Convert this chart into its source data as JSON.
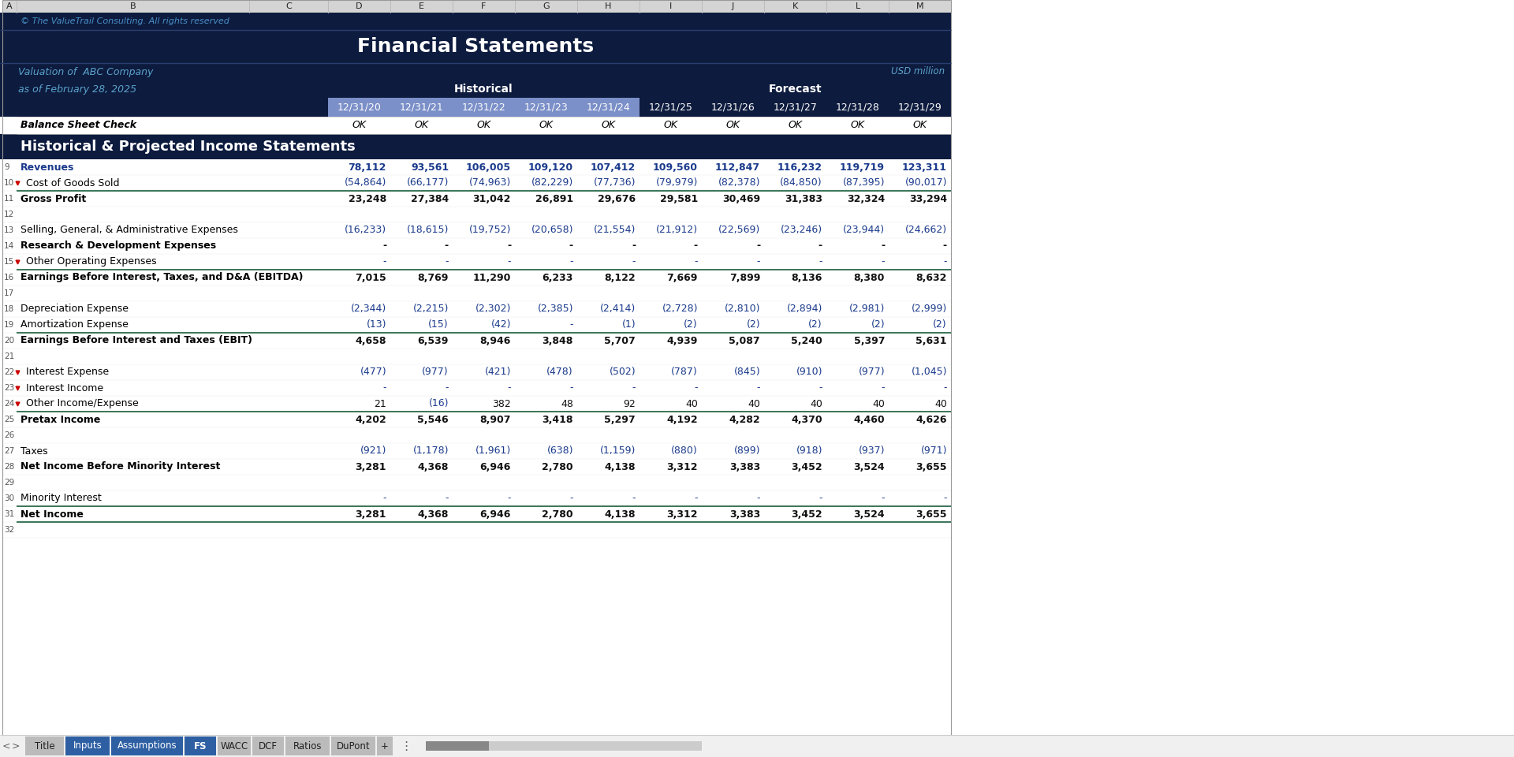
{
  "title": "Financial Statements",
  "copyright": "© The ValueTrail Consulting. All rights reserved",
  "company": "Valuation of  ABC Company",
  "date": "as of February 28, 2025",
  "usd_note": "USD million",
  "section_header": "Historical & Projected Income Statements",
  "historical_label": "Historical",
  "forecast_label": "Forecast",
  "col_headers": [
    "12/31/20",
    "12/31/21",
    "12/31/22",
    "12/31/23",
    "12/31/24",
    "12/31/25",
    "12/31/26",
    "12/31/27",
    "12/31/28",
    "12/31/29"
  ],
  "balance_check": [
    "OK",
    "OK",
    "OK",
    "OK",
    "OK",
    "OK",
    "OK",
    "OK",
    "OK",
    "OK"
  ],
  "rows": [
    {
      "label": "Revenues",
      "bold": true,
      "blue_bold": true,
      "indent": 0,
      "row_num": 9,
      "values": [
        "78,112",
        "93,561",
        "106,005",
        "109,120",
        "107,412",
        "109,560",
        "112,847",
        "116,232",
        "119,719",
        "123,311"
      ]
    },
    {
      "label": "Cost of Goods Sold",
      "bold": false,
      "blue_bold": false,
      "indent": 0,
      "red_marker": true,
      "row_num": 10,
      "values": [
        "(54,864)",
        "(66,177)",
        "(74,963)",
        "(82,229)",
        "(77,736)",
        "(79,979)",
        "(82,378)",
        "(84,850)",
        "(87,395)",
        "(90,017)"
      ]
    },
    {
      "label": "Gross Profit",
      "bold": true,
      "blue_bold": false,
      "indent": 0,
      "top_border": true,
      "row_num": 11,
      "values": [
        "23,248",
        "27,384",
        "31,042",
        "26,891",
        "29,676",
        "29,581",
        "30,469",
        "31,383",
        "32,324",
        "33,294"
      ]
    },
    {
      "label": "",
      "bold": false,
      "indent": 0,
      "row_num": 12,
      "values": [
        "",
        "",
        "",
        "",
        "",
        "",
        "",
        "",
        "",
        ""
      ]
    },
    {
      "label": "Selling, General, & Administrative Expenses",
      "bold": false,
      "indent": 0,
      "row_num": 13,
      "values": [
        "(16,233)",
        "(18,615)",
        "(19,752)",
        "(20,658)",
        "(21,554)",
        "(21,912)",
        "(22,569)",
        "(23,246)",
        "(23,944)",
        "(24,662)"
      ]
    },
    {
      "label": "Research & Development Expenses",
      "bold": true,
      "indent": 0,
      "row_num": 14,
      "values": [
        "-",
        "-",
        "-",
        "-",
        "-",
        "-",
        "-",
        "-",
        "-",
        "-"
      ]
    },
    {
      "label": "Other Operating Expenses",
      "bold": false,
      "indent": 0,
      "red_marker": true,
      "row_num": 15,
      "values": [
        "-",
        "-",
        "-",
        "-",
        "-",
        "-",
        "-",
        "-",
        "-",
        "-"
      ]
    },
    {
      "label": "Earnings Before Interest, Taxes, and D&A (EBITDA)",
      "bold": true,
      "indent": 0,
      "top_border": true,
      "row_num": 16,
      "values": [
        "7,015",
        "8,769",
        "11,290",
        "6,233",
        "8,122",
        "7,669",
        "7,899",
        "8,136",
        "8,380",
        "8,632"
      ]
    },
    {
      "label": "",
      "bold": false,
      "indent": 0,
      "row_num": 17,
      "values": [
        "",
        "",
        "",
        "",
        "",
        "",
        "",
        "",
        "",
        ""
      ]
    },
    {
      "label": "Depreciation Expense",
      "bold": false,
      "indent": 0,
      "row_num": 18,
      "values": [
        "(2,344)",
        "(2,215)",
        "(2,302)",
        "(2,385)",
        "(2,414)",
        "(2,728)",
        "(2,810)",
        "(2,894)",
        "(2,981)",
        "(2,999)"
      ]
    },
    {
      "label": "Amortization Expense",
      "bold": false,
      "indent": 0,
      "row_num": 19,
      "values": [
        "(13)",
        "(15)",
        "(42)",
        "-",
        "(1)",
        "(2)",
        "(2)",
        "(2)",
        "(2)",
        "(2)"
      ]
    },
    {
      "label": "Earnings Before Interest and Taxes (EBIT)",
      "bold": true,
      "indent": 0,
      "top_border": true,
      "row_num": 20,
      "values": [
        "4,658",
        "6,539",
        "8,946",
        "3,848",
        "5,707",
        "4,939",
        "5,087",
        "5,240",
        "5,397",
        "5,631"
      ]
    },
    {
      "label": "",
      "bold": false,
      "indent": 0,
      "row_num": 21,
      "values": [
        "",
        "",
        "",
        "",
        "",
        "",
        "",
        "",
        "",
        ""
      ]
    },
    {
      "label": "Interest Expense",
      "bold": false,
      "indent": 0,
      "red_marker": true,
      "row_num": 22,
      "values": [
        "(477)",
        "(977)",
        "(421)",
        "(478)",
        "(502)",
        "(787)",
        "(845)",
        "(910)",
        "(977)",
        "(1,045)"
      ]
    },
    {
      "label": "Interest Income",
      "bold": false,
      "indent": 0,
      "red_marker": true,
      "row_num": 23,
      "values": [
        "-",
        "-",
        "-",
        "-",
        "-",
        "-",
        "-",
        "-",
        "-",
        "-"
      ]
    },
    {
      "label": "Other Income/Expense",
      "bold": false,
      "indent": 0,
      "red_marker": true,
      "row_num": 24,
      "values": [
        "21",
        "(16)",
        "382",
        "48",
        "92",
        "40",
        "40",
        "40",
        "40",
        "40"
      ]
    },
    {
      "label": "Pretax Income",
      "bold": true,
      "indent": 0,
      "top_border": true,
      "row_num": 25,
      "values": [
        "4,202",
        "5,546",
        "8,907",
        "3,418",
        "5,297",
        "4,192",
        "4,282",
        "4,370",
        "4,460",
        "4,626"
      ]
    },
    {
      "label": "",
      "bold": false,
      "indent": 0,
      "row_num": 26,
      "values": [
        "",
        "",
        "",
        "",
        "",
        "",
        "",
        "",
        "",
        ""
      ]
    },
    {
      "label": "Taxes",
      "bold": false,
      "indent": 0,
      "row_num": 27,
      "values": [
        "(921)",
        "(1,178)",
        "(1,961)",
        "(638)",
        "(1,159)",
        "(880)",
        "(899)",
        "(918)",
        "(937)",
        "(971)"
      ]
    },
    {
      "label": "Net Income Before Minority Interest",
      "bold": true,
      "indent": 0,
      "row_num": 28,
      "values": [
        "3,281",
        "4,368",
        "6,946",
        "2,780",
        "4,138",
        "3,312",
        "3,383",
        "3,452",
        "3,524",
        "3,655"
      ]
    },
    {
      "label": "",
      "bold": false,
      "indent": 0,
      "row_num": 29,
      "values": [
        "",
        "",
        "",
        "",
        "",
        "",
        "",
        "",
        "",
        ""
      ]
    },
    {
      "label": "Minority Interest",
      "bold": false,
      "indent": 0,
      "row_num": 30,
      "values": [
        "-",
        "-",
        "-",
        "-",
        "-",
        "-",
        "-",
        "-",
        "-",
        "-"
      ]
    },
    {
      "label": "Net Income",
      "bold": true,
      "indent": 0,
      "top_border": true,
      "bottom_border": true,
      "row_num": 31,
      "values": [
        "3,281",
        "4,368",
        "6,946",
        "2,780",
        "4,138",
        "3,312",
        "3,383",
        "3,452",
        "3,524",
        "3,655"
      ]
    },
    {
      "label": "",
      "bold": false,
      "indent": 0,
      "row_num": 32,
      "values": [
        "",
        "",
        "",
        "",
        "",
        "",
        "",
        "",
        "",
        ""
      ]
    }
  ],
  "tabs": [
    "Title",
    "Inputs",
    "Assumptions",
    "FS",
    "WACC",
    "DCF",
    "Ratios",
    "DuPont",
    "+"
  ],
  "active_tab": "FS",
  "colors": {
    "dark_navy": "#0D1B3E",
    "blue_text": "#1A3A8C",
    "paren_blue": "#1A3A8C",
    "white_text": "#FFFFFF",
    "copyright_text": "#4A90C8",
    "col_header_purple": "#7B8FC8",
    "tab_blue": "#2E5FA3",
    "tab_active_bg": "#2E5FA3",
    "green_line": "#2A6B4A",
    "red_marker": "#CC0000",
    "section_header_bg": "#0D1B3E",
    "gray_col_header": "#C8C8C8",
    "light_blue_italic": "#5BA3CC"
  }
}
